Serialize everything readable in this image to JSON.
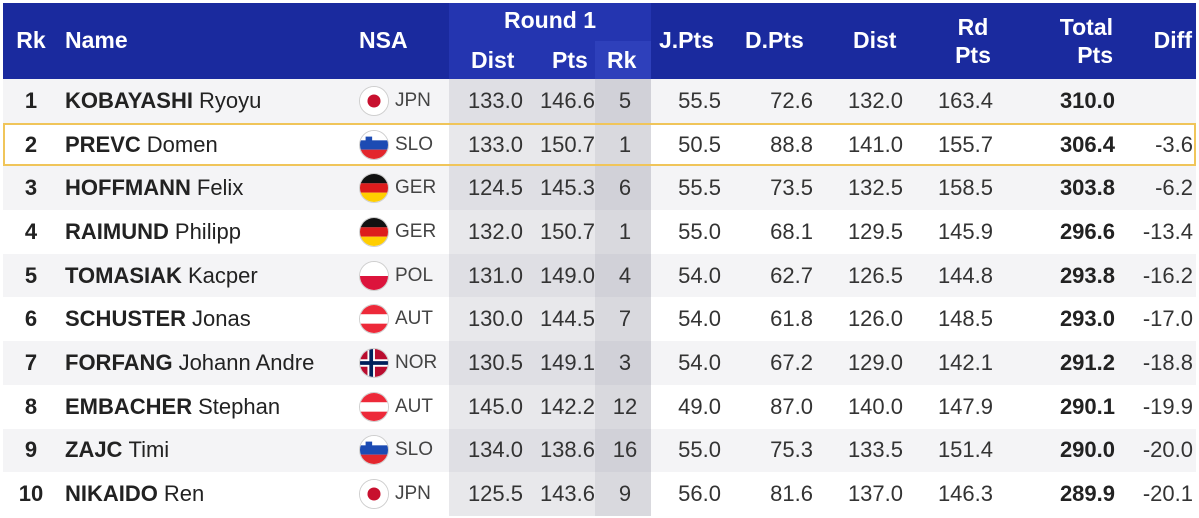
{
  "header": {
    "rk": "Rk",
    "name": "Name",
    "nsa": "NSA",
    "round1": "Round 1",
    "r1_dist": "Dist",
    "r1_pts": "Pts",
    "r1_rk": "Rk",
    "jpts": "J.Pts",
    "dpts": "D.Pts",
    "dist": "Dist",
    "rdpts_1": "Rd",
    "rdpts_2": "Pts",
    "total_1": "Total",
    "total_2": "Pts",
    "diff": "Diff"
  },
  "rows": [
    {
      "rank": "1",
      "surname": "KOBAYASHI",
      "first": "Ryoyu",
      "nsa": "JPN",
      "flag": "jpn-flag-icon",
      "r1_dist": "133.0",
      "r1_pts": "146.6",
      "r1_rk": "5",
      "jpts": "55.5",
      "dpts": "72.6",
      "dist": "132.0",
      "rdpts": "163.4",
      "total": "310.0",
      "diff": ""
    },
    {
      "rank": "2",
      "surname": "PREVC",
      "first": "Domen",
      "nsa": "SLO",
      "flag": "slo-flag-icon",
      "r1_dist": "133.0",
      "r1_pts": "150.7",
      "r1_rk": "1",
      "jpts": "50.5",
      "dpts": "88.8",
      "dist": "141.0",
      "rdpts": "155.7",
      "total": "306.4",
      "diff": "-3.6",
      "highlighted": true
    },
    {
      "rank": "3",
      "surname": "HOFFMANN",
      "first": "Felix",
      "nsa": "GER",
      "flag": "ger-flag-icon",
      "r1_dist": "124.5",
      "r1_pts": "145.3",
      "r1_rk": "6",
      "jpts": "55.5",
      "dpts": "73.5",
      "dist": "132.5",
      "rdpts": "158.5",
      "total": "303.8",
      "diff": "-6.2"
    },
    {
      "rank": "4",
      "surname": "RAIMUND",
      "first": "Philipp",
      "nsa": "GER",
      "flag": "ger-flag-icon",
      "r1_dist": "132.0",
      "r1_pts": "150.7",
      "r1_rk": "1",
      "jpts": "55.0",
      "dpts": "68.1",
      "dist": "129.5",
      "rdpts": "145.9",
      "total": "296.6",
      "diff": "-13.4"
    },
    {
      "rank": "5",
      "surname": "TOMASIAK",
      "first": "Kacper",
      "nsa": "POL",
      "flag": "pol-flag-icon",
      "r1_dist": "131.0",
      "r1_pts": "149.0",
      "r1_rk": "4",
      "jpts": "54.0",
      "dpts": "62.7",
      "dist": "126.5",
      "rdpts": "144.8",
      "total": "293.8",
      "diff": "-16.2"
    },
    {
      "rank": "6",
      "surname": "SCHUSTER",
      "first": "Jonas",
      "nsa": "AUT",
      "flag": "aut-flag-icon",
      "r1_dist": "130.0",
      "r1_pts": "144.5",
      "r1_rk": "7",
      "jpts": "54.0",
      "dpts": "61.8",
      "dist": "126.0",
      "rdpts": "148.5",
      "total": "293.0",
      "diff": "-17.0"
    },
    {
      "rank": "7",
      "surname": "FORFANG",
      "first": "Johann Andre",
      "nsa": "NOR",
      "flag": "nor-flag-icon",
      "r1_dist": "130.5",
      "r1_pts": "149.1",
      "r1_rk": "3",
      "jpts": "54.0",
      "dpts": "67.2",
      "dist": "129.0",
      "rdpts": "142.1",
      "total": "291.2",
      "diff": "-18.8"
    },
    {
      "rank": "8",
      "surname": "EMBACHER",
      "first": "Stephan",
      "nsa": "AUT",
      "flag": "aut-flag-icon",
      "r1_dist": "145.0",
      "r1_pts": "142.2",
      "r1_rk": "12",
      "jpts": "49.0",
      "dpts": "87.0",
      "dist": "140.0",
      "rdpts": "147.9",
      "total": "290.1",
      "diff": "-19.9"
    },
    {
      "rank": "9",
      "surname": "ZAJC",
      "first": "Timi",
      "nsa": "SLO",
      "flag": "slo-flag-icon",
      "r1_dist": "134.0",
      "r1_pts": "138.6",
      "r1_rk": "16",
      "jpts": "55.0",
      "dpts": "75.3",
      "dist": "133.5",
      "rdpts": "151.4",
      "total": "290.0",
      "diff": "-20.0"
    },
    {
      "rank": "10",
      "surname": "NIKAIDO",
      "first": "Ren",
      "nsa": "JPN",
      "flag": "jpn-flag-icon",
      "r1_dist": "125.5",
      "r1_pts": "143.6",
      "r1_rk": "9",
      "jpts": "56.0",
      "dpts": "81.6",
      "dist": "137.0",
      "rdpts": "146.3",
      "total": "289.9",
      "diff": "-20.1"
    }
  ],
  "colors": {
    "header_bg": "#1a2a9e",
    "highlight_border": "#f0c55a"
  }
}
